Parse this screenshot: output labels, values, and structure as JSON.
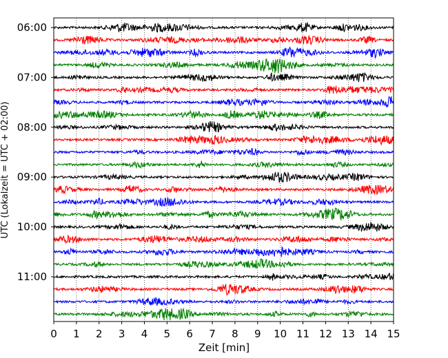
{
  "chart_data": {
    "type": "line",
    "description_kind": "helicorder",
    "xlabel": "Zeit  [min]",
    "ylabel": "UTC (Lokalzeit = UTC + 02:00)",
    "xlim": [
      0,
      15
    ],
    "x_ticks": [
      "0",
      "1",
      "2",
      "3",
      "4",
      "5",
      "6",
      "7",
      "8",
      "9",
      "10",
      "11",
      "12",
      "13",
      "14",
      "15"
    ],
    "y_tick_labels": [
      "06:00",
      "07:00",
      "08:00",
      "09:00",
      "10:00",
      "11:00"
    ],
    "grid": "vertical-dotted",
    "trace_colors": [
      "#000000",
      "#ff0000",
      "#0000ff",
      "#008000"
    ],
    "traces": [
      "06:00",
      "06:15",
      "06:30",
      "06:45",
      "07:00",
      "07:15",
      "07:30",
      "07:45",
      "08:00",
      "08:15",
      "08:30",
      "08:45",
      "09:00",
      "09:15",
      "09:30",
      "09:45",
      "10:00",
      "10:15",
      "10:30",
      "10:45",
      "11:00",
      "11:15",
      "11:30",
      "11:45"
    ]
  }
}
